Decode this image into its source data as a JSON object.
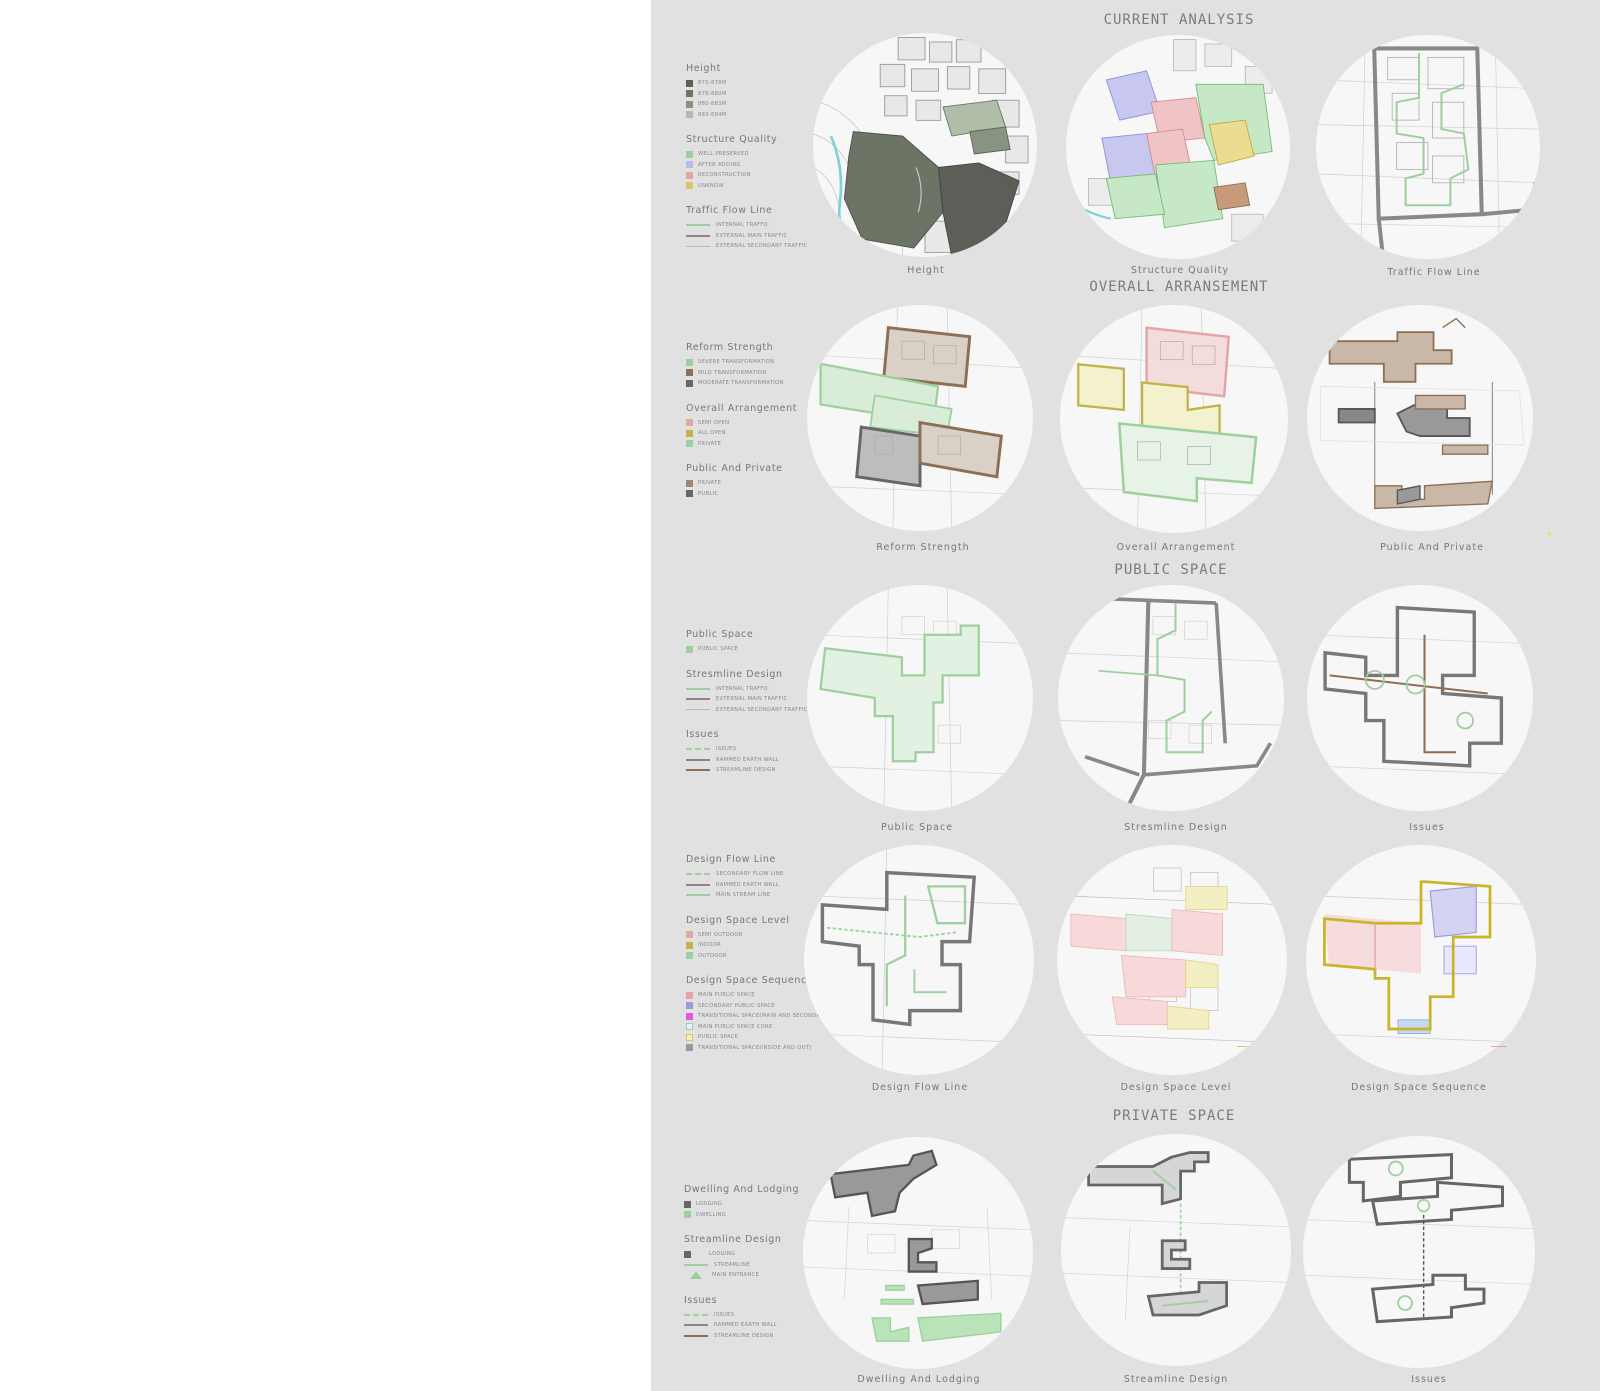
{
  "sections": {
    "current_analysis": "CURRENt ANALYSIS",
    "overall_arrangement": "OVERALL ARRANSEMENt",
    "public_space": "PUbLIC SPACE",
    "private_space": "PRIVAtE SPACE"
  },
  "legend1": {
    "height": {
      "title": "Height",
      "items": [
        "875-878m",
        "878-880m",
        "880-883m",
        "883-884m"
      ]
    },
    "structure": {
      "title": "Structure quality",
      "items": [
        "Well Preserved",
        "After Adding",
        "Reconstruction",
        "Unknow"
      ]
    },
    "traffic": {
      "title": "Traffic flow line",
      "items": [
        "Internal traffic",
        "External main traffic",
        "External secondary traffic"
      ]
    }
  },
  "legend2": {
    "reform": {
      "title": "Reform strength",
      "items": [
        "Severe transformation",
        "Mild transformation",
        "Moderate transformation"
      ]
    },
    "arrangement": {
      "title": "Overall Arrangement",
      "items": [
        "Semi open",
        "All open",
        "Private"
      ]
    },
    "public_private": {
      "title": "Public And Private",
      "items": [
        "Private",
        "Public"
      ]
    }
  },
  "legend3": {
    "public_space": {
      "title": "Public Space",
      "items": [
        "Public Space"
      ]
    },
    "streamline": {
      "title": "Stresmline Design",
      "items": [
        "Internal traffic",
        "External main traffic",
        "External secondary traffic"
      ]
    },
    "issues": {
      "title": "Issues",
      "items": [
        "Issues",
        "Rammed earth wall",
        "Streamline Design"
      ]
    }
  },
  "legend4": {
    "flow": {
      "title": "Design flow line",
      "items": [
        "Secondary flow line",
        "Rammed earth wall",
        "Main stream line"
      ]
    },
    "level": {
      "title": "Design space level",
      "items": [
        "Semi outdoor",
        "Indoor",
        "Outdoor"
      ]
    },
    "sequence": {
      "title": "Design space sequence",
      "items": [
        "Main public space",
        "Secondary public space",
        "Transitional space(Main and Secondary)",
        "Main public space core",
        "Public Space",
        "Transitional space(inside and out)"
      ]
    }
  },
  "legend5": {
    "dwelling": {
      "title": "Dwelling and Lodging",
      "items": [
        "Lodging",
        "Dwelling"
      ]
    },
    "streamline": {
      "title": "Streamline design",
      "items": [
        "Lodging",
        "Streamline",
        "Main entrance"
      ]
    },
    "issues": {
      "title": "Issues",
      "items": [
        "Issues",
        "Rammed earth wall",
        "Streamline Design"
      ]
    }
  },
  "captions": {
    "r1": [
      "Height",
      "Structure quality",
      "Traffic flow line"
    ],
    "r2": [
      "Reform strength",
      "Overall Arrangement",
      "Public And Private"
    ],
    "r3": [
      "Public Space",
      "Stresmline Design",
      "Issues"
    ],
    "r4": [
      "Design flow line",
      "Design space level",
      "Design space sequence"
    ],
    "r5": [
      "Dwelling and Lodging",
      "Streamline design",
      "Issues"
    ]
  },
  "colors": {
    "background": "#e1e1e1",
    "height": [
      "#5b5f58",
      "#6b7465",
      "#88947f",
      "#b0bda8"
    ],
    "green": "#9ed09e",
    "blue": "#b9b9ea",
    "red": "#e3a6a8",
    "yellow": "#d8c46a",
    "brown": "#8c6f55",
    "gray": "#777777",
    "magenta": "#e059e0"
  }
}
